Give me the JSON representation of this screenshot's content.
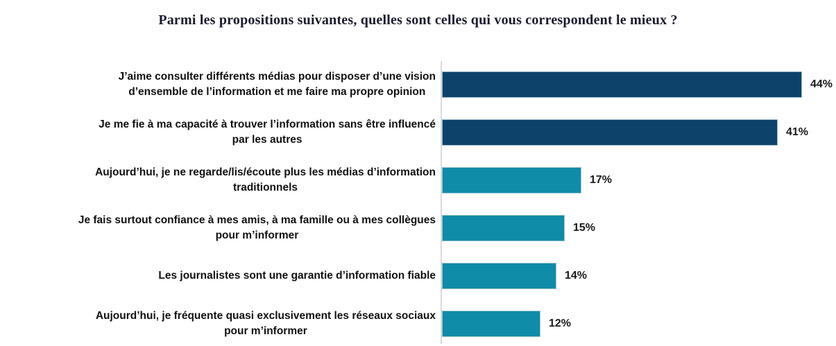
{
  "title": "Parmi les propositions suivantes, quelles sont celles qui vous correspondent le mieux ?",
  "style": {
    "navy": "#0d436b",
    "teal": "#0e8ca8",
    "axis_color": "#d9d9d9",
    "title_color": "#1b1b2e",
    "text_color": "#111111"
  },
  "chart_data": {
    "type": "bar",
    "orientation": "horizontal",
    "title": "Parmi les propositions suivantes, quelles sont celles qui vous correspondent le mieux ?",
    "unit": "%",
    "xlim": [
      0,
      48
    ],
    "grid": false,
    "legend": false,
    "categories": [
      "J’aime consulter différents médias pour disposer d’une vision\nd’ensemble de l’information et me faire ma propre opinion",
      "Je me fie à ma capacité à trouver l’information sans être influencé\npar les autres",
      "Aujourd’hui, je ne regarde/lis/écoute plus les médias d’information\ntraditionnels",
      "Je fais surtout confiance à mes amis, à ma famille ou à mes collègues\npour m’informer",
      "Les journalistes sont une garantie d’information fiable",
      "Aujourd’hui, je fréquente quasi exclusivement les réseaux sociaux\npour m’informer"
    ],
    "values": [
      44,
      41,
      17,
      15,
      14,
      12
    ],
    "value_labels": [
      "44%",
      "41%",
      "17%",
      "15%",
      "14%",
      "12%"
    ],
    "bar_colors": [
      "#0d436b",
      "#0d436b",
      "#0e8ca8",
      "#0e8ca8",
      "#0e8ca8",
      "#0e8ca8"
    ]
  }
}
